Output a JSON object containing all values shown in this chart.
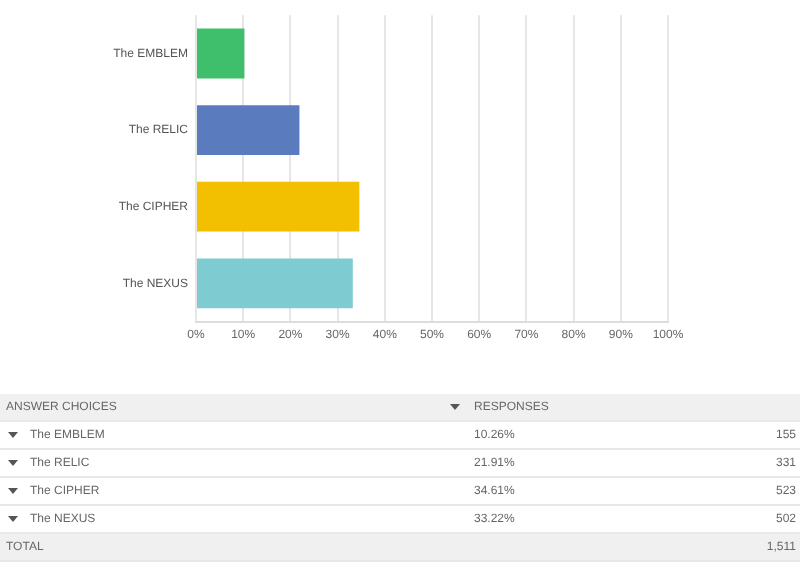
{
  "chart_data": {
    "type": "bar",
    "orientation": "horizontal",
    "categories": [
      "The EMBLEM",
      "The RELIC",
      "The CIPHER",
      "The NEXUS"
    ],
    "values": [
      10.26,
      21.91,
      34.61,
      33.22
    ],
    "colors": [
      "#3fbf6b",
      "#5a7cbf",
      "#f2c000",
      "#7ecbd1"
    ],
    "xlim": [
      0,
      100
    ],
    "xticks": [
      {
        "value": 0,
        "label": "0%"
      },
      {
        "value": 10,
        "label": "10%"
      },
      {
        "value": 20,
        "label": "20%"
      },
      {
        "value": 30,
        "label": "30%"
      },
      {
        "value": 40,
        "label": "40%"
      },
      {
        "value": 50,
        "label": "50%"
      },
      {
        "value": 60,
        "label": "60%"
      },
      {
        "value": 70,
        "label": "70%"
      },
      {
        "value": 80,
        "label": "80%"
      },
      {
        "value": 90,
        "label": "90%"
      },
      {
        "value": 100,
        "label": "100%"
      }
    ],
    "grid": "x",
    "legend": false,
    "annotations": [
      "ANSWER CHOICES",
      "RESPONSES",
      "10.26%",
      "155",
      "21.91%",
      "331",
      "34.61%",
      "523",
      "33.22%",
      "502",
      "TOTAL",
      "1,511"
    ]
  }
}
